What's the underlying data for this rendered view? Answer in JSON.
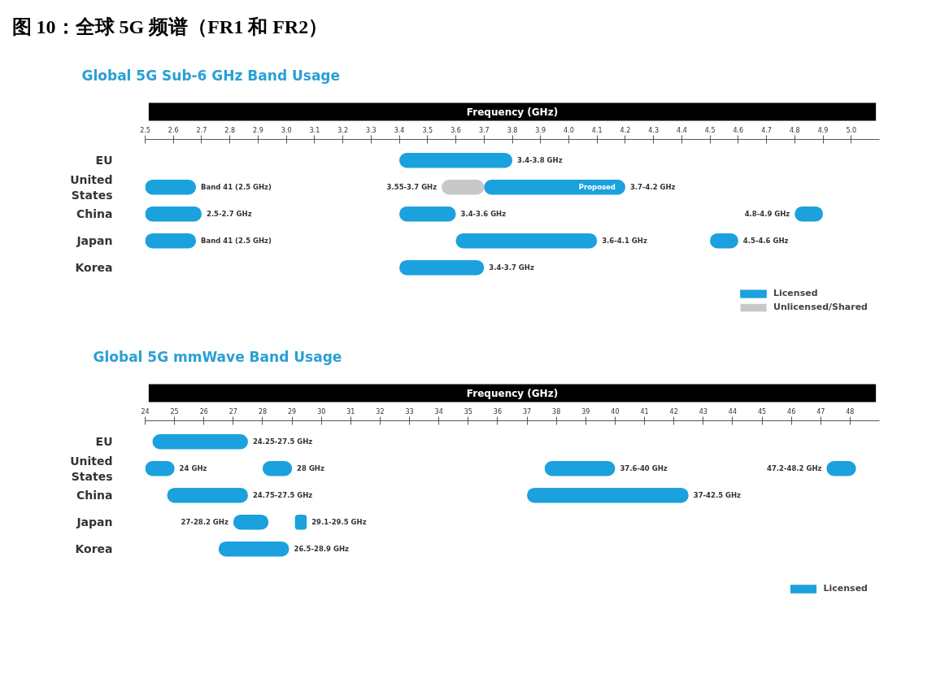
{
  "chart_data": [
    {
      "type": "bar",
      "orientation": "horizontal",
      "title": "图 10：全球 5G 频谱（FR1 和 FR2）",
      "subtitle": "Global 5G Sub-6 GHz Band Usage",
      "xlabel": "Frequency (GHz)",
      "categories": [
        "EU",
        "United States",
        "China",
        "Japan",
        "Korea"
      ],
      "series": [
        {
          "name": "Licensed",
          "color": "#1ba1dd",
          "base": [
            null,
            2.5,
            2.5,
            2.5,
            null
          ],
          "values": [
            null,
            0.18,
            0.2,
            0.18,
            null
          ],
          "value_labels": [
            null,
            "Band 41 (2.5 GHz)",
            "2.5-2.7 GHz",
            "Band 41 (2.5 GHz)",
            null
          ]
        },
        {
          "color": "#1ba1dd",
          "base": [
            3.4,
            3.7,
            3.4,
            3.6,
            3.4
          ],
          "values": [
            0.4,
            0.5,
            0.2,
            0.5,
            0.3
          ],
          "value_labels": [
            "3.4-3.8 GHz",
            "3.7-4.2 GHz",
            "3.4-3.6 GHz",
            "3.6-4.1 GHz",
            "3.4-3.7 GHz"
          ]
        },
        {
          "color": "#1ba1dd",
          "base": [
            null,
            null,
            4.8,
            4.5,
            null
          ],
          "values": [
            null,
            null,
            0.1,
            0.1,
            null
          ],
          "value_labels": [
            null,
            null,
            "4.8-4.9 GHz",
            "4.5-4.6 GHz",
            null
          ]
        },
        {
          "name": "Unlicensed/Shared",
          "color": "#c8c8c8",
          "base": [
            null,
            3.55,
            null,
            null,
            null
          ],
          "values": [
            null,
            0.15,
            null,
            null,
            null
          ],
          "value_labels": [
            null,
            "3.55-3.7 GHz",
            null,
            null,
            null
          ]
        }
      ],
      "xlim": [
        2.5,
        5.1
      ],
      "xticks": [
        2.5,
        2.6,
        2.7,
        2.8,
        2.9,
        {
          "value": 3,
          "label": "3.0"
        },
        3.1,
        3.2,
        3.3,
        3.4,
        3.5,
        3.6,
        3.7,
        3.8,
        3.9,
        {
          "value": 4,
          "label": "4.0"
        },
        4.1,
        4.2,
        4.3,
        4.4,
        4.5,
        4.6,
        4.7,
        4.8,
        4.9,
        {
          "value": 5,
          "label": "5.0"
        }
      ],
      "legend": "bottom right",
      "annotations": [
        {
          "text": "Proposed",
          "x": 4.2,
          "y": "United States"
        }
      ]
    },
    {
      "type": "bar",
      "orientation": "horizontal",
      "title": "Global 5G mmWave Band Usage",
      "xlabel": "Frequency (GHz)",
      "categories": [
        "EU",
        "United States",
        "China",
        "Japan",
        "Korea"
      ],
      "series": [
        {
          "name": "Licensed",
          "color": "#1ba1dd",
          "base": [
            24.25,
            24,
            24.75,
            27,
            26.5
          ],
          "values": [
            3.25,
            1,
            2.75,
            1.2,
            2.4
          ],
          "value_labels": [
            "24.25-27.5 GHz",
            null,
            "24.75-27.5 GHz",
            "27-28.2 GHz",
            "26.5-28.9 GHz"
          ]
        },
        {
          "color": "#1ba1dd",
          "base": [
            null,
            28,
            37,
            29.1,
            null
          ],
          "values": [
            null,
            1,
            5.5,
            0.4,
            null
          ],
          "value_labels": [
            null,
            null,
            "37-42.5 GHz",
            "29.1-29.5 GHz",
            null
          ]
        },
        {
          "color": "#1ba1dd",
          "base": [
            null,
            37.6,
            null,
            null,
            null
          ],
          "values": [
            null,
            2.4,
            null,
            null,
            null
          ],
          "value_labels": [
            null,
            "37.6-40 GHz",
            null,
            null,
            null
          ]
        },
        {
          "color": "#1ba1dd",
          "base": [
            null,
            47.2,
            null,
            null,
            null
          ],
          "values": [
            null,
            1,
            null,
            null,
            null
          ],
          "value_labels": [
            null,
            "47.2-48.2 GHz",
            null,
            null,
            null
          ]
        }
      ],
      "xlim": [
        24,
        49
      ],
      "xticks": [
        24,
        25,
        26,
        27,
        28,
        29,
        30,
        31,
        32,
        33,
        34,
        35,
        36,
        37,
        38,
        39,
        40,
        41,
        42,
        43,
        44,
        45,
        46,
        47,
        48
      ],
      "legend": "bottom right",
      "annotations": [
        {
          "text": "24 GHz",
          "x": 25,
          "y": "United States"
        },
        {
          "text": "28 GHz",
          "x": 29,
          "y": "United States"
        }
      ]
    }
  ]
}
